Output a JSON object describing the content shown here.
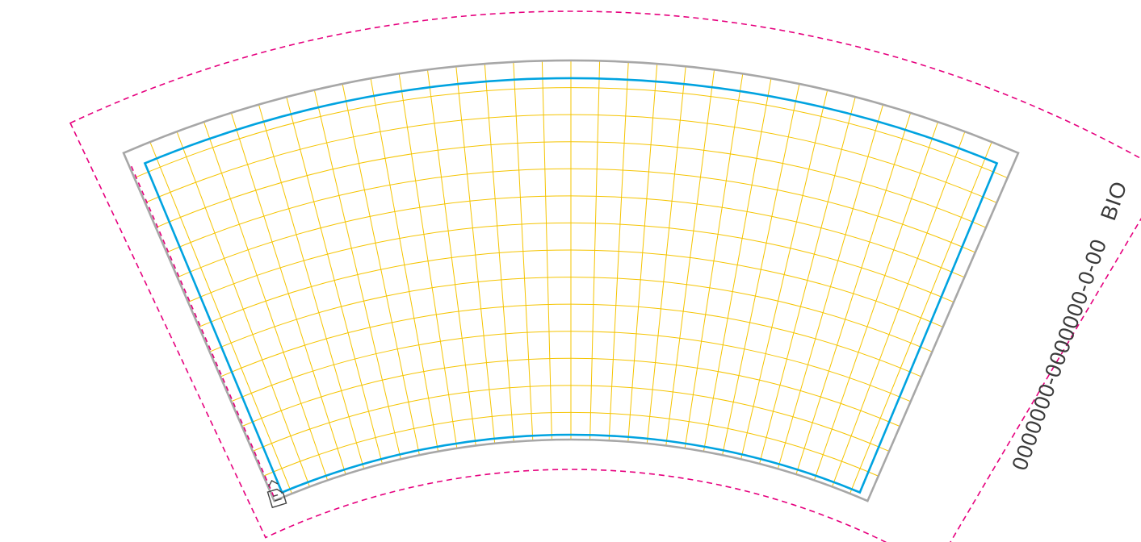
{
  "dieline": {
    "product_code": "0000000-0000000-0-00",
    "material_mark": "BIO",
    "grid": {
      "radial_divisions": 32,
      "arc_divisions": 14
    },
    "colors": {
      "background": "#ffffff",
      "bleed_line": "#e6007e",
      "trim_line": "#a7a7a7",
      "safe_line": "#00a3e0",
      "grid_line": "#f5c400"
    }
  }
}
